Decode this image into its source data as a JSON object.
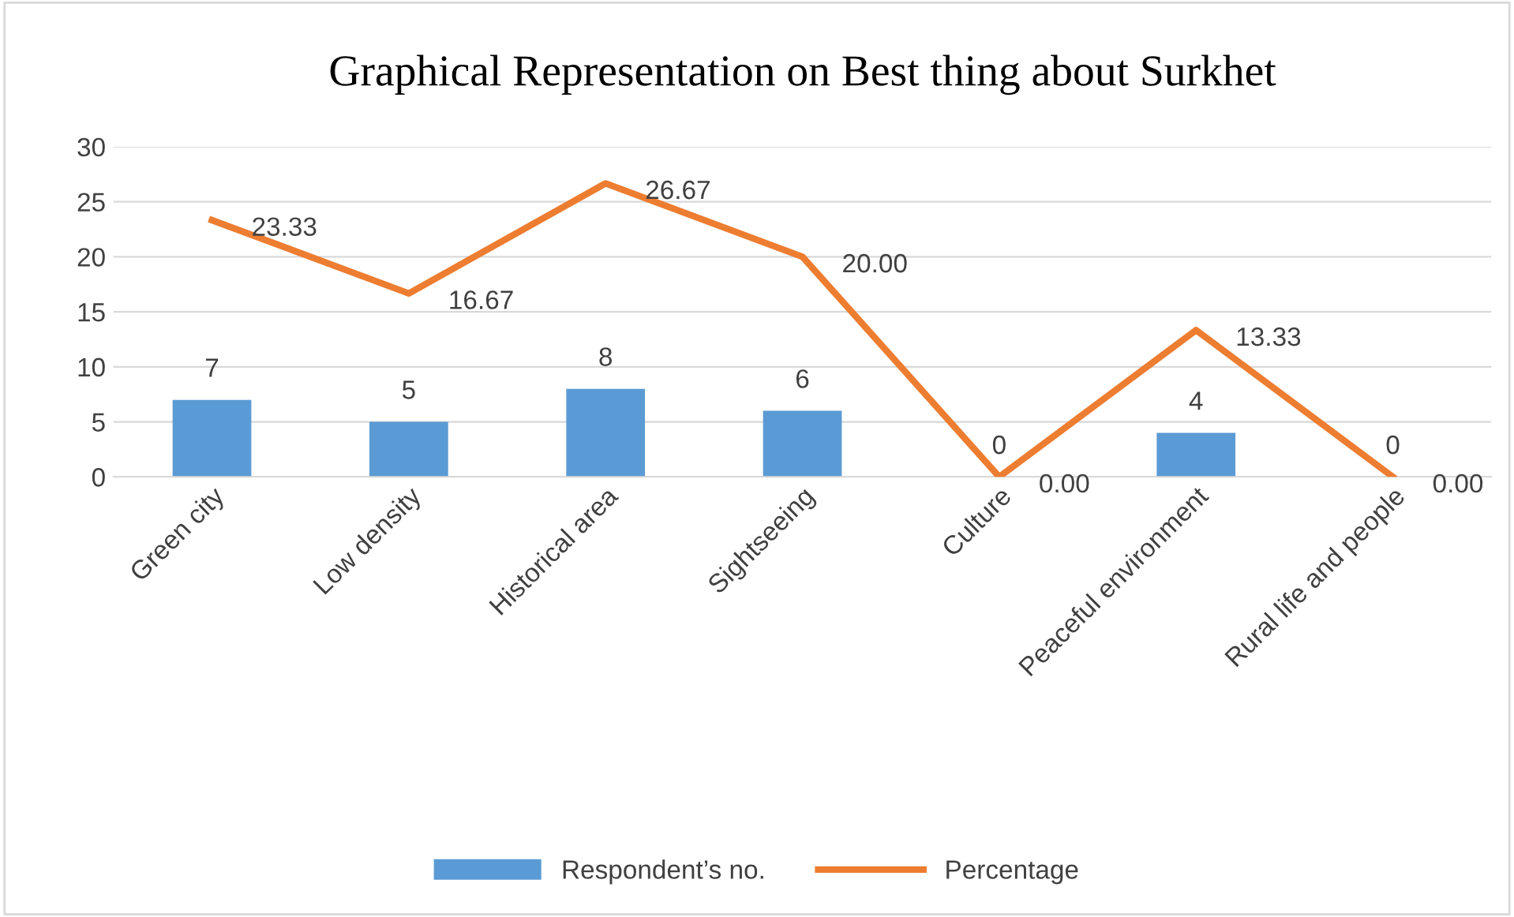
{
  "chart_data": {
    "type": "bar",
    "title": "Graphical Representation on Best thing about Surkhet",
    "categories": [
      "Green city",
      "Low density",
      "Historical area",
      "Sightseeing",
      "Culture",
      "Peaceful environment",
      "Rural life and people"
    ],
    "series": [
      {
        "name": "Respondent’s no.",
        "color": "#5b9bd5",
        "values": [
          7,
          5,
          8,
          6,
          0,
          4,
          0
        ],
        "value_labels": [
          "7",
          "5",
          "8",
          "6",
          "0",
          "4",
          "0"
        ]
      },
      {
        "name": "Percentage",
        "type": "line",
        "color": "#ed7d31",
        "values": [
          23.33,
          16.67,
          26.67,
          20.0,
          0.0,
          13.33,
          0.0
        ],
        "value_labels": [
          "23.33",
          "16.67",
          "26.67",
          "20.00",
          "0.00",
          "13.33",
          "0.00"
        ]
      }
    ],
    "ylim": [
      0,
      30
    ],
    "yticks": [
      0,
      5,
      10,
      15,
      20,
      25,
      30
    ],
    "grid": "y",
    "legend": "bottom",
    "marker": "none",
    "line_style": "solid"
  }
}
